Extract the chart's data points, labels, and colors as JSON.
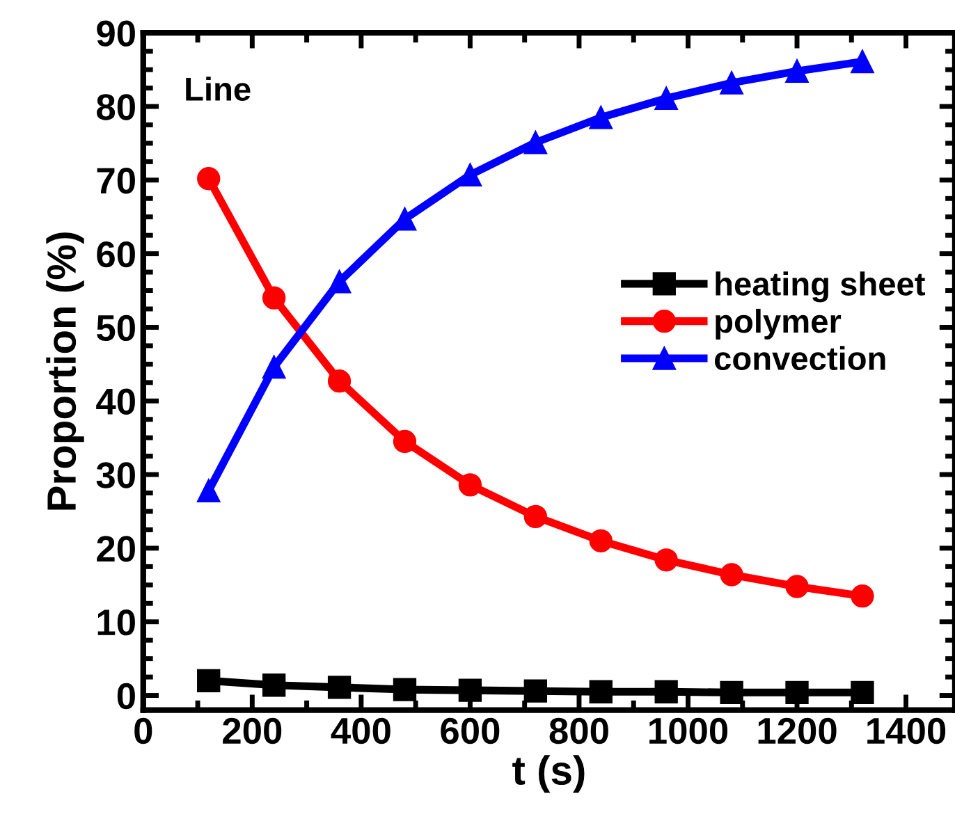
{
  "chart_data": {
    "type": "line",
    "xlabel": "t (s)",
    "ylabel": "Proportion (%)",
    "annotations": [
      "Line"
    ],
    "x": [
      120,
      240,
      360,
      480,
      600,
      720,
      840,
      960,
      1080,
      1200,
      1320
    ],
    "series": [
      {
        "name": "heating sheet",
        "color": "#000000",
        "marker": "square",
        "values": [
          2.0,
          1.4,
          1.1,
          0.8,
          0.7,
          0.6,
          0.5,
          0.5,
          0.4,
          0.4,
          0.4
        ]
      },
      {
        "name": "polymer",
        "color": "#ff0000",
        "marker": "circle",
        "values": [
          70.2,
          54.0,
          42.7,
          34.5,
          28.6,
          24.3,
          21.0,
          18.4,
          16.4,
          14.8,
          13.5
        ]
      },
      {
        "name": "convection",
        "color": "#0000ff",
        "marker": "triangle",
        "values": [
          27.8,
          44.6,
          56.2,
          64.7,
          70.7,
          75.1,
          78.5,
          81.1,
          83.2,
          84.8,
          86.1
        ]
      }
    ],
    "xlim": [
      0,
      1490
    ],
    "xticks": [
      0,
      200,
      400,
      600,
      800,
      1000,
      1200,
      1400
    ],
    "ylim": [
      -2,
      90
    ],
    "yticks": [
      0,
      10,
      20,
      30,
      40,
      50,
      60,
      70,
      80,
      90
    ],
    "grid": false,
    "legend": "right",
    "line_style": "solid"
  }
}
